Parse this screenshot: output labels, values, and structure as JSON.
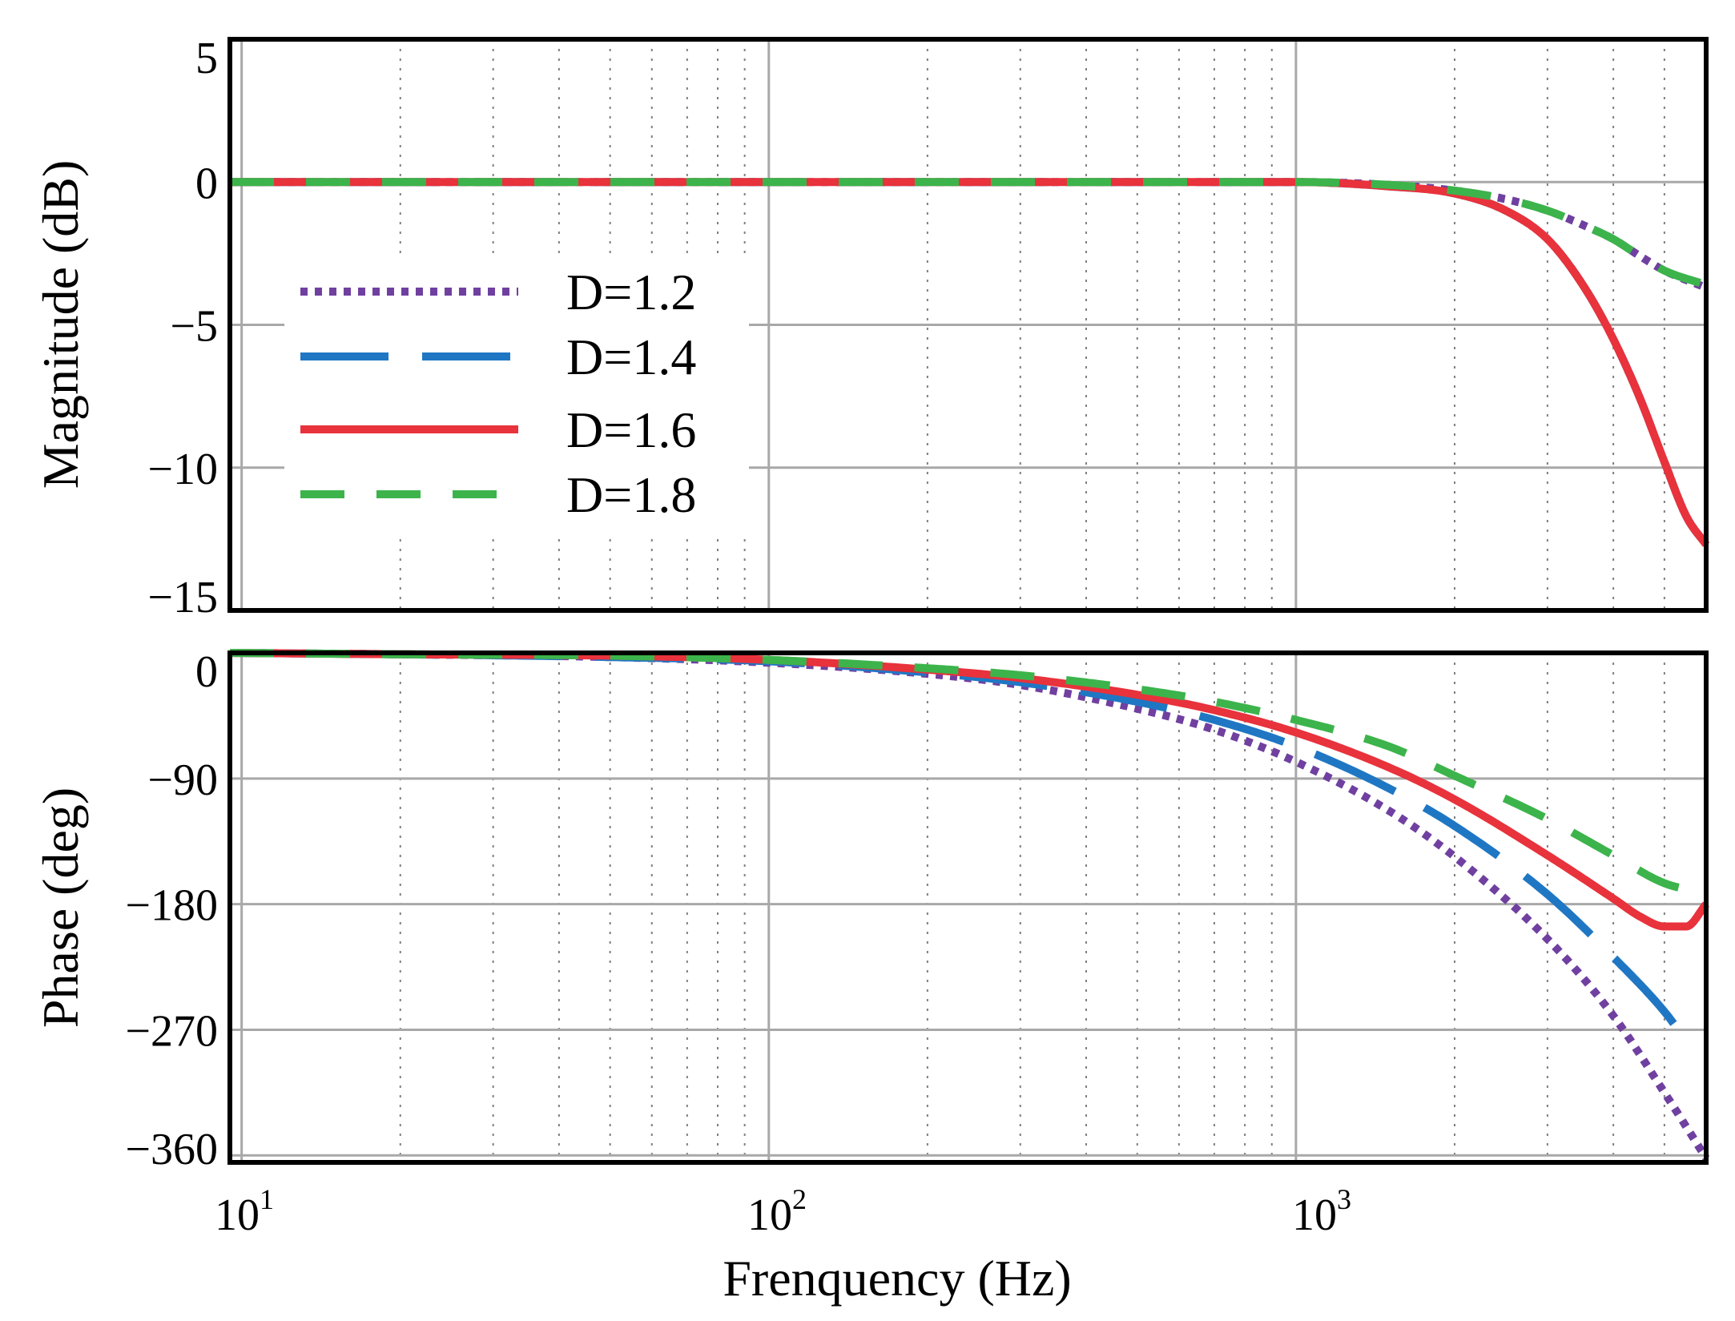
{
  "chart_data": [
    {
      "type": "line",
      "panel": "magnitude",
      "ylabel": "Magnitude (dB)",
      "xscale": "log",
      "xlim": [
        9.5,
        6000
      ],
      "ylim": [
        -15,
        5
      ],
      "yticks": [
        5,
        0,
        -5,
        -10,
        -15
      ],
      "ytick_labels": [
        "5",
        "0",
        "−5",
        "−10",
        "−15"
      ],
      "grid": true,
      "legend": {
        "placement": "center-left",
        "entries": [
          "D=1.2",
          "D=1.4",
          "D=1.6",
          "D=1.8"
        ]
      },
      "series": [
        {
          "name": "D=1.2",
          "color": "#7040a0",
          "style": "dotted",
          "x": [
            9.5,
            100,
            1000,
            1500,
            2000,
            2500,
            3000,
            3500,
            4000,
            4500,
            5000,
            6000
          ],
          "y": [
            0,
            0,
            0,
            -0.1,
            -0.3,
            -0.6,
            -1.0,
            -1.5,
            -2.0,
            -2.6,
            -3.1,
            -3.7
          ]
        },
        {
          "name": "D=1.4",
          "color": "#1f77c4",
          "style": "long-dash",
          "x": [
            9.5,
            100,
            1000,
            1500,
            2000,
            2500,
            3000,
            3500,
            4000,
            4500,
            5000,
            5500,
            6000
          ],
          "y": [
            0,
            0,
            0,
            -0.15,
            -0.4,
            -1.0,
            -2.0,
            -3.6,
            -5.5,
            -7.6,
            -9.8,
            -11.7,
            -12.7
          ]
        },
        {
          "name": "D=1.6",
          "color": "#e8323c",
          "style": "solid",
          "x": [
            9.5,
            100,
            1000,
            1500,
            2000,
            2500,
            3000,
            3500,
            4000,
            4500,
            5000,
            5500,
            6000
          ],
          "y": [
            0,
            0,
            0,
            -0.15,
            -0.4,
            -1.0,
            -2.0,
            -3.6,
            -5.5,
            -7.6,
            -9.8,
            -11.7,
            -12.7
          ]
        },
        {
          "name": "D=1.8",
          "color": "#3cb44b",
          "style": "dashed",
          "x": [
            9.5,
            100,
            1000,
            1500,
            2000,
            2500,
            3000,
            3500,
            4000,
            4500,
            5000,
            6000
          ],
          "y": [
            0,
            0,
            0,
            -0.1,
            -0.3,
            -0.6,
            -1.0,
            -1.5,
            -2.0,
            -2.6,
            -3.1,
            -3.6
          ]
        }
      ]
    },
    {
      "type": "line",
      "panel": "phase",
      "ylabel": "Phase (deg)",
      "xlabel": "Frenquency (Hz)",
      "xscale": "log",
      "xlim": [
        9.5,
        6000
      ],
      "ylim": [
        -365,
        0
      ],
      "yticks": [
        0,
        -90,
        -180,
        -270,
        -360
      ],
      "ytick_labels": [
        "0",
        "−90",
        "−180",
        "−270",
        "−360"
      ],
      "xticks": [
        10,
        100,
        1000
      ],
      "xtick_labels": [
        {
          "base": "10",
          "exp": "1"
        },
        {
          "base": "10",
          "exp": "2"
        },
        {
          "base": "10",
          "exp": "3"
        }
      ],
      "grid": true,
      "series": [
        {
          "name": "D=1.2",
          "color": "#7040a0",
          "style": "dotted",
          "x": [
            9.5,
            20,
            50,
            100,
            200,
            300,
            500,
            700,
            1000,
            1500,
            2000,
            3000,
            4000,
            5000,
            6000
          ],
          "y": [
            0,
            -1,
            -3,
            -7,
            -15,
            -23,
            -40,
            -55,
            -78,
            -113,
            -146,
            -205,
            -260,
            -315,
            -362
          ]
        },
        {
          "name": "D=1.4",
          "color": "#1f77c4",
          "style": "long-dash",
          "x": [
            9.5,
            20,
            50,
            100,
            200,
            300,
            500,
            700,
            1000,
            1500,
            2000,
            3000,
            4000,
            5000,
            5500
          ],
          "y": [
            0,
            -1,
            -3,
            -6,
            -14,
            -21,
            -35,
            -48,
            -67,
            -97,
            -124,
            -173,
            -218,
            -257,
            -278
          ]
        },
        {
          "name": "D=1.6",
          "color": "#e8323c",
          "style": "solid",
          "x": [
            9.5,
            20,
            50,
            100,
            200,
            300,
            500,
            700,
            1000,
            1500,
            2000,
            3000,
            4000,
            4500,
            5000,
            5500,
            6000
          ],
          "y": [
            0,
            -1,
            -2,
            -5,
            -12,
            -18,
            -30,
            -41,
            -57,
            -82,
            -105,
            -145,
            -176,
            -189,
            -196,
            -196,
            -180
          ]
        },
        {
          "name": "D=1.8",
          "color": "#3cb44b",
          "style": "dashed",
          "x": [
            9.5,
            20,
            50,
            100,
            200,
            300,
            500,
            700,
            1000,
            1500,
            2000,
            3000,
            4000,
            5000,
            6000
          ],
          "y": [
            0,
            -1,
            -2,
            -5,
            -11,
            -16,
            -26,
            -35,
            -48,
            -67,
            -88,
            -119,
            -145,
            -165,
            -172
          ]
        }
      ]
    }
  ]
}
